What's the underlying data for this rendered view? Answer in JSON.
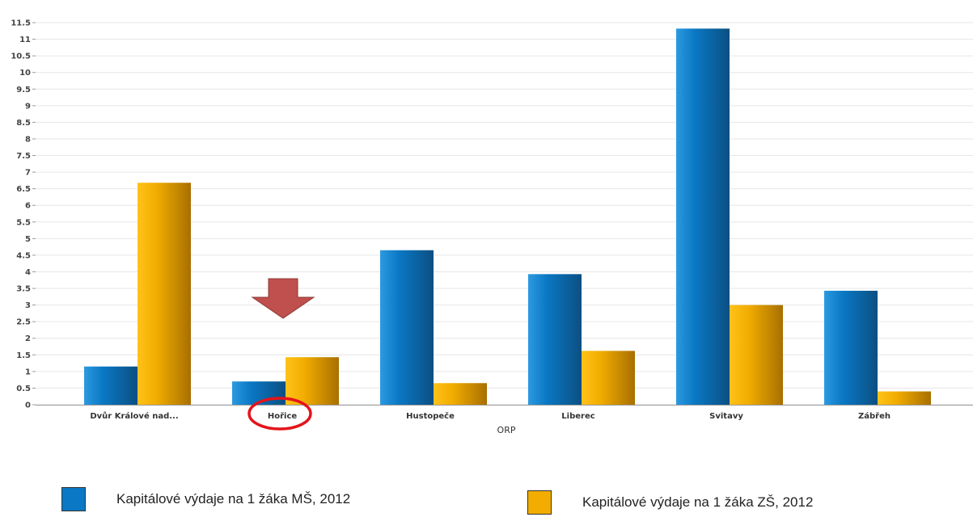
{
  "chart_data": {
    "type": "bar",
    "categories": [
      "Dvůr Králové nad...",
      "Hořice",
      "Hustopeče",
      "Liberec",
      "Svitavy",
      "Zábřeh"
    ],
    "series": [
      {
        "name": "Kapitálové výdaje na 1 žáka MŠ, 2012",
        "color": "#0a78c4",
        "values": [
          1.15,
          0.7,
          4.65,
          3.93,
          11.32,
          3.43
        ]
      },
      {
        "name": "Kapitálové výdaje na 1 žáka ZŠ, 2012",
        "color": "#f2ad00",
        "values": [
          6.68,
          1.43,
          0.65,
          1.62,
          3.0,
          0.4
        ]
      }
    ],
    "xlabel": "ORP",
    "ylabel": "",
    "ylim": [
      0,
      11.5
    ],
    "yticks": [
      "0",
      "0.5",
      "1",
      "1.5",
      "2",
      "2.5",
      "3",
      "3.5",
      "4",
      "4.5",
      "5",
      "5.5",
      "6",
      "6.5",
      "7",
      "7.5",
      "8",
      "8.5",
      "9",
      "9.5",
      "10",
      "10.5",
      "11",
      "11.5"
    ],
    "grid": true,
    "legend_position": "bottom",
    "annotations": [
      {
        "type": "arrow",
        "direction": "down",
        "target": "Hořice",
        "color": "#c0504d"
      },
      {
        "type": "circle",
        "target": "Hořice",
        "color": "#e3141b"
      }
    ]
  }
}
